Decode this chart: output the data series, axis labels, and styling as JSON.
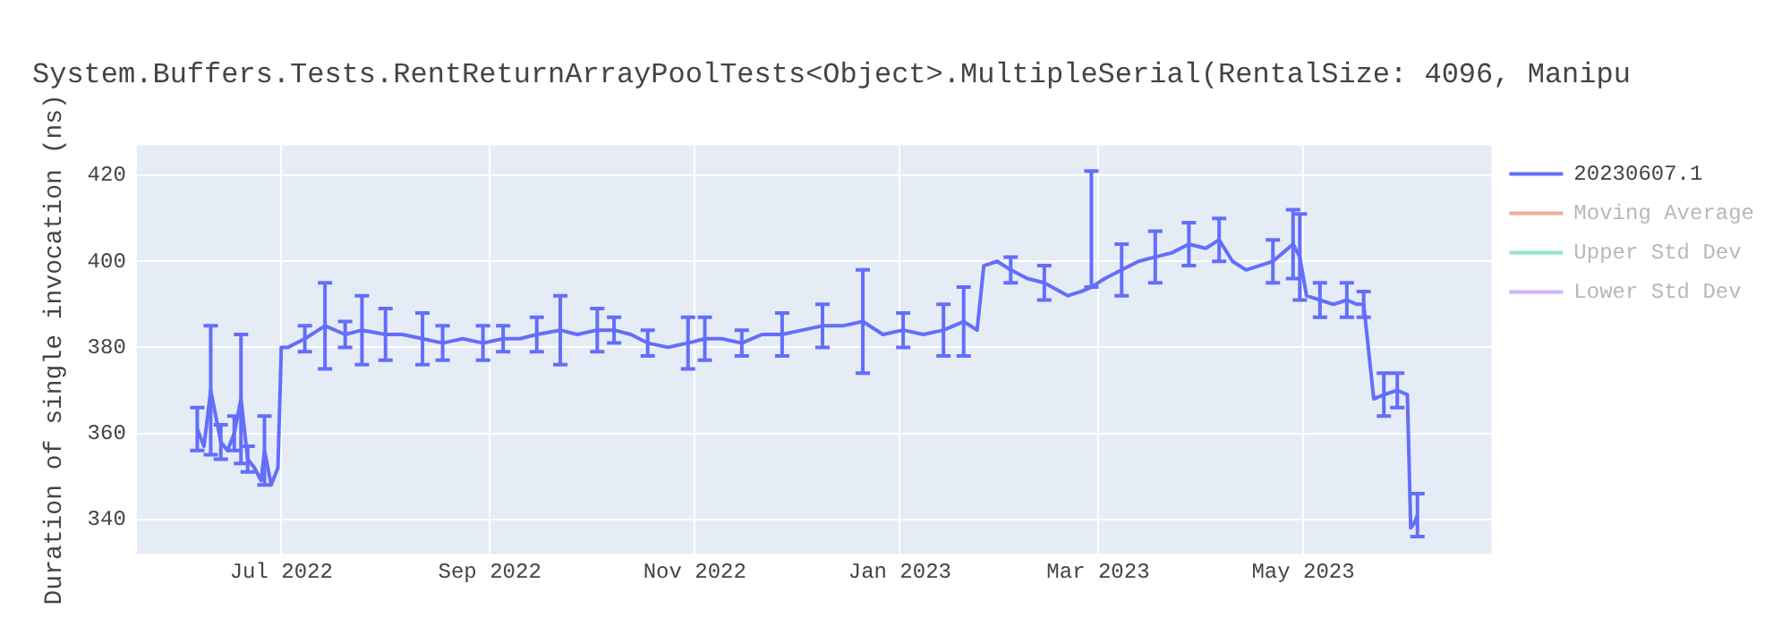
{
  "chart_data": {
    "type": "line",
    "title": "System.Buffers.Tests.RentReturnArrayPoolTests<Object>.MultipleSerial(RentalSize: 4096, Manipu",
    "ylabel": "Duration of single invocation (ns)",
    "xlim": [
      "2022-05-19",
      "2023-06-26"
    ],
    "xticks": [
      {
        "value": "2022-07-01",
        "label": "Jul 2022"
      },
      {
        "value": "2022-09-01",
        "label": "Sep 2022"
      },
      {
        "value": "2022-11-01",
        "label": "Nov 2022"
      },
      {
        "value": "2023-01-01",
        "label": "Jan 2023"
      },
      {
        "value": "2023-03-01",
        "label": "Mar 2023"
      },
      {
        "value": "2023-05-01",
        "label": "May 2023"
      }
    ],
    "ylim": [
      332,
      427
    ],
    "yticks": [
      340,
      360,
      380,
      400,
      420
    ],
    "grid": true,
    "legend": "top right",
    "marker": "none",
    "line_style": "solid",
    "series": [
      {
        "name": "20230607.1",
        "color": "#636efa",
        "x": [
          "2022-06-06",
          "2022-06-08",
          "2022-06-10",
          "2022-06-13",
          "2022-06-15",
          "2022-06-17",
          "2022-06-19",
          "2022-06-21",
          "2022-06-23",
          "2022-06-25",
          "2022-06-26",
          "2022-06-28",
          "2022-06-30",
          "2022-07-01",
          "2022-07-03",
          "2022-07-08",
          "2022-07-14",
          "2022-07-20",
          "2022-07-25",
          "2022-08-01",
          "2022-08-06",
          "2022-08-12",
          "2022-08-18",
          "2022-08-24",
          "2022-08-30",
          "2022-09-05",
          "2022-09-10",
          "2022-09-15",
          "2022-09-22",
          "2022-09-27",
          "2022-10-03",
          "2022-10-08",
          "2022-10-13",
          "2022-10-18",
          "2022-10-24",
          "2022-10-30",
          "2022-11-04",
          "2022-11-09",
          "2022-11-15",
          "2022-11-21",
          "2022-11-27",
          "2022-12-03",
          "2022-12-09",
          "2022-12-15",
          "2022-12-21",
          "2022-12-27",
          "2023-01-02",
          "2023-01-08",
          "2023-01-14",
          "2023-01-20",
          "2023-01-24",
          "2023-01-26",
          "2023-01-30",
          "2023-02-03",
          "2023-02-08",
          "2023-02-13",
          "2023-02-20",
          "2023-02-24",
          "2023-02-27",
          "2023-03-03",
          "2023-03-08",
          "2023-03-13",
          "2023-03-18",
          "2023-03-23",
          "2023-03-28",
          "2023-04-02",
          "2023-04-06",
          "2023-04-10",
          "2023-04-14",
          "2023-04-18",
          "2023-04-22",
          "2023-04-25",
          "2023-04-28",
          "2023-04-30",
          "2023-05-02",
          "2023-05-06",
          "2023-05-10",
          "2023-05-14",
          "2023-05-17",
          "2023-05-19",
          "2023-05-22",
          "2023-05-25",
          "2023-05-29",
          "2023-06-01",
          "2023-06-02",
          "2023-06-03",
          "2023-06-04"
        ],
        "values": [
          361,
          357,
          370,
          358,
          356,
          360,
          368,
          354,
          352,
          349,
          356,
          348,
          352,
          380,
          380,
          382,
          385,
          383,
          384,
          383,
          383,
          382,
          381,
          382,
          381,
          382,
          382,
          383,
          384,
          383,
          384,
          384,
          383,
          381,
          380,
          381,
          382,
          382,
          381,
          383,
          383,
          384,
          385,
          385,
          386,
          383,
          384,
          383,
          384,
          386,
          384,
          399,
          400,
          398,
          396,
          395,
          392,
          393,
          394,
          396,
          398,
          400,
          401,
          402,
          404,
          403,
          405,
          400,
          398,
          399,
          400,
          402,
          404,
          401,
          392,
          391,
          390,
          391,
          390,
          390,
          368,
          369,
          370,
          369,
          338,
          339,
          341
        ],
        "errors": [
          5,
          null,
          15,
          4,
          null,
          4,
          15,
          3,
          null,
          null,
          8,
          null,
          null,
          null,
          null,
          3,
          10,
          3,
          8,
          6,
          null,
          6,
          4,
          null,
          4,
          3,
          null,
          4,
          8,
          null,
          5,
          3,
          null,
          3,
          null,
          6,
          5,
          null,
          3,
          null,
          5,
          null,
          5,
          null,
          12,
          null,
          4,
          null,
          6,
          8,
          null,
          null,
          null,
          3,
          null,
          4,
          null,
          null,
          [
            394,
            421
          ],
          null,
          6,
          null,
          6,
          null,
          5,
          null,
          5,
          null,
          null,
          null,
          5,
          null,
          8,
          10,
          null,
          4,
          null,
          4,
          null,
          3,
          null,
          5,
          4,
          null,
          null,
          null,
          5
        ]
      },
      {
        "name": "Moving Average",
        "color": "#f5a99a"
      },
      {
        "name": "Upper Std Dev",
        "color": "#8ee8c4"
      },
      {
        "name": "Lower Std Dev",
        "color": "#cdb4fb"
      }
    ]
  }
}
